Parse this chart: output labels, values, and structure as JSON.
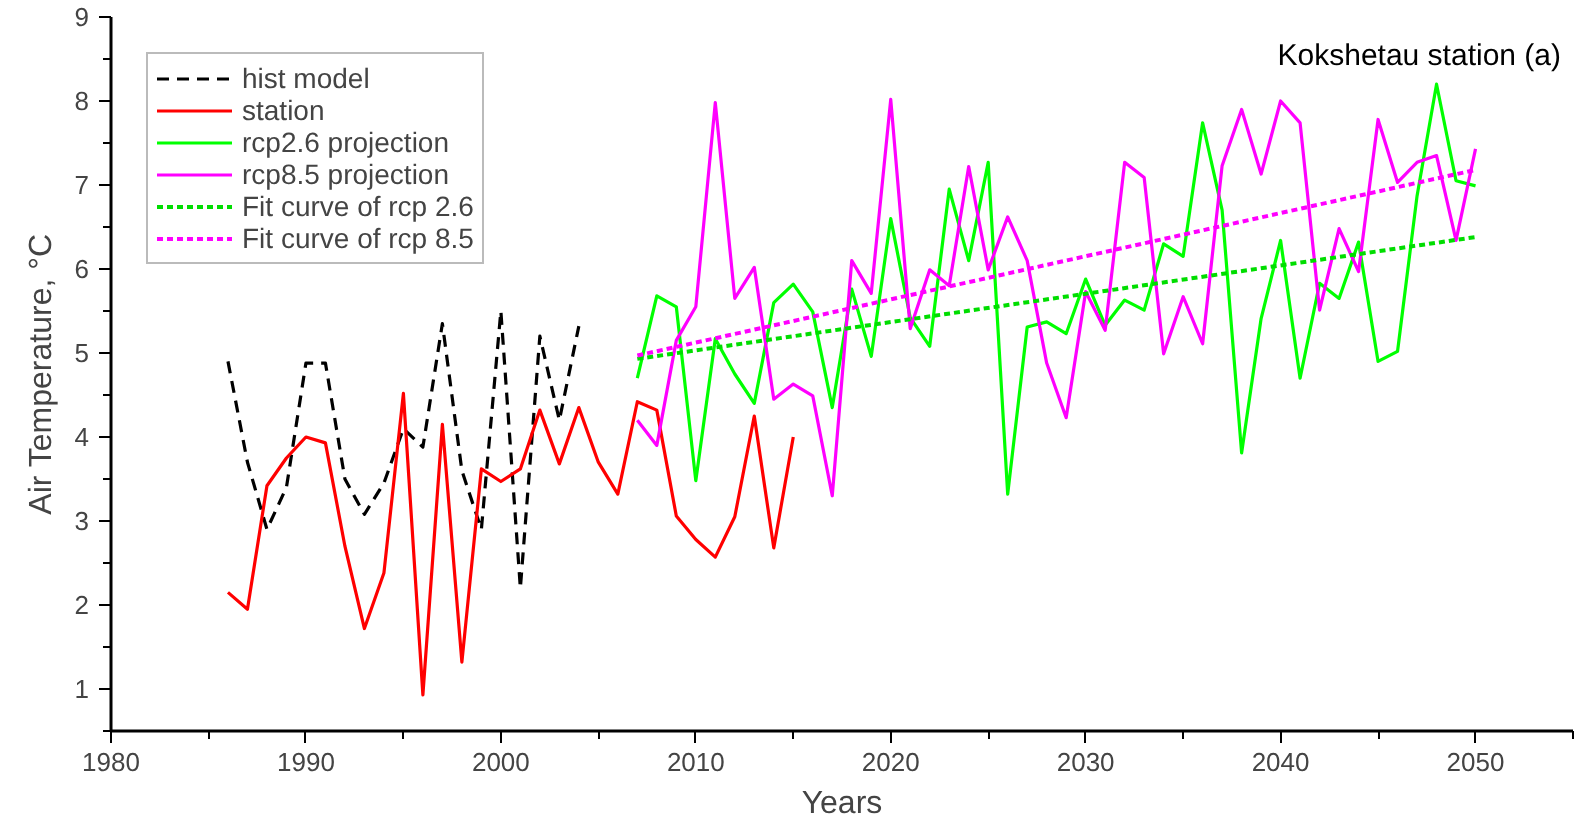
{
  "chart_data": {
    "type": "line",
    "title": "Kokshetau station (a)",
    "xlabel": "Years",
    "ylabel": "Air Temperature, °C",
    "xlim": [
      1980,
      2055
    ],
    "xticks": [
      1980,
      1990,
      2000,
      2010,
      2020,
      2030,
      2040,
      2050
    ],
    "ylim": [
      0.5,
      9
    ],
    "yticks": [
      1,
      2,
      3,
      4,
      5,
      6,
      7,
      8,
      9
    ],
    "grid": false,
    "legend": "top left",
    "marker": "none",
    "series": [
      {
        "name": "hist model",
        "color": "#000000",
        "line_style": "dashed",
        "x": [
          1986,
          1987,
          1988,
          1989,
          1990,
          1991,
          1992,
          1993,
          1994,
          1995,
          1996,
          1997,
          1998,
          1999,
          2000,
          2001,
          2002,
          2003,
          2004
        ],
        "values": [
          4.9,
          3.7,
          2.9,
          3.4,
          4.88,
          4.88,
          3.5,
          3.08,
          3.45,
          4.1,
          3.88,
          5.35,
          3.6,
          2.9,
          5.5,
          2.2,
          5.2,
          4.2,
          5.32
        ]
      },
      {
        "name": "station",
        "color": "#ff0000",
        "line_style": "solid",
        "x": [
          1986,
          1987,
          1988,
          1989,
          1990,
          1991,
          1992,
          1993,
          1994,
          1995,
          1996,
          1997,
          1998,
          1999,
          2000,
          2001,
          2002,
          2003,
          2004,
          2005,
          2006,
          2007,
          2008,
          2009,
          2010,
          2011,
          2012,
          2013,
          2014,
          2015
        ],
        "values": [
          2.15,
          1.95,
          3.42,
          3.75,
          4.0,
          3.93,
          2.7,
          1.72,
          2.38,
          4.52,
          0.93,
          4.15,
          1.32,
          3.62,
          3.47,
          3.62,
          4.32,
          3.68,
          4.35,
          3.7,
          3.32,
          4.42,
          4.32,
          3.06,
          2.78,
          2.57,
          3.05,
          4.25,
          2.68,
          4.0
        ]
      },
      {
        "name": "rcp2.6 projection",
        "color": "#00ff00",
        "line_style": "solid",
        "x": [
          2007,
          2008,
          2009,
          2010,
          2011,
          2012,
          2013,
          2014,
          2015,
          2016,
          2017,
          2018,
          2019,
          2020,
          2021,
          2022,
          2023,
          2024,
          2025,
          2026,
          2027,
          2028,
          2029,
          2030,
          2031,
          2032,
          2033,
          2034,
          2035,
          2036,
          2037,
          2038,
          2039,
          2040,
          2041,
          2042,
          2043,
          2044,
          2045,
          2046,
          2047,
          2048,
          2049,
          2050
        ],
        "values": [
          4.7,
          5.68,
          5.55,
          3.48,
          5.17,
          4.75,
          4.4,
          5.6,
          5.82,
          5.49,
          4.35,
          5.76,
          4.96,
          6.6,
          5.42,
          5.08,
          6.95,
          6.1,
          7.27,
          3.32,
          5.31,
          5.37,
          5.23,
          5.88,
          5.33,
          5.63,
          5.51,
          6.3,
          6.15,
          7.74,
          6.7,
          3.81,
          5.41,
          6.34,
          4.7,
          5.83,
          5.65,
          6.32,
          4.9,
          5.02,
          6.87,
          8.2,
          7.05,
          6.99
        ]
      },
      {
        "name": "rcp8.5 projection",
        "color": "#ff00ff",
        "line_style": "solid",
        "x": [
          2007,
          2008,
          2009,
          2010,
          2011,
          2012,
          2013,
          2014,
          2015,
          2016,
          2017,
          2018,
          2019,
          2020,
          2021,
          2022,
          2023,
          2024,
          2025,
          2026,
          2027,
          2028,
          2029,
          2030,
          2031,
          2032,
          2033,
          2034,
          2035,
          2036,
          2037,
          2038,
          2039,
          2040,
          2041,
          2042,
          2043,
          2044,
          2045,
          2046,
          2047,
          2048,
          2049,
          2050
        ],
        "values": [
          4.2,
          3.9,
          5.15,
          5.55,
          7.98,
          5.65,
          6.02,
          4.45,
          4.63,
          4.49,
          3.3,
          6.1,
          5.71,
          8.02,
          5.29,
          5.99,
          5.8,
          7.22,
          5.99,
          6.62,
          6.1,
          4.88,
          4.23,
          5.73,
          5.27,
          7.27,
          7.09,
          4.99,
          5.67,
          5.11,
          7.23,
          7.9,
          7.13,
          8.0,
          7.74,
          5.51,
          6.48,
          5.97,
          7.78,
          7.03,
          7.27,
          7.35,
          6.34,
          7.43
        ]
      },
      {
        "name": "Fit curve of rcp 2.6",
        "color": "#00dd00",
        "line_style": "dotted",
        "x": [
          2007,
          2050
        ],
        "values": [
          4.93,
          6.38
        ]
      },
      {
        "name": "Fit curve of rcp 8.5",
        "color": "#ff00ff",
        "line_style": "dotted",
        "x": [
          2007,
          2050
        ],
        "values": [
          4.97,
          7.18
        ]
      }
    ]
  }
}
